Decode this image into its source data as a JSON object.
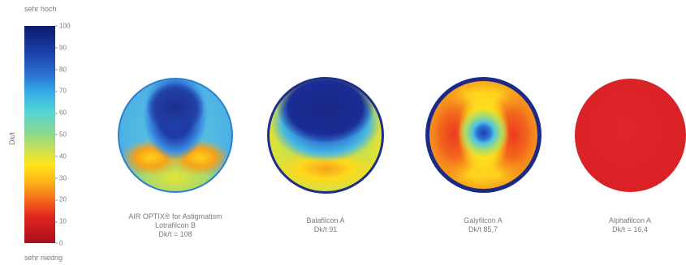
{
  "scale": {
    "top_label": "sehr hoch",
    "bottom_label": "sehr niedrig",
    "axis_label": "Dk/t",
    "ticks": [
      "100",
      "90",
      "80",
      "70",
      "60",
      "50",
      "40",
      "30",
      "20",
      "10",
      "0"
    ]
  },
  "lenses": [
    {
      "name": "AIR OPTIX® for Astigmatism",
      "material": "Lotrafilcon B",
      "dkt": "Dk/t = 108"
    },
    {
      "name": "Balafilcon A",
      "dkt": "Dk/t 91"
    },
    {
      "name": "Galyfilcon A",
      "dkt": "Dk/t 85,7"
    },
    {
      "name": "Alphafilcon A",
      "dkt": "Dk/t = 16,4"
    }
  ]
}
